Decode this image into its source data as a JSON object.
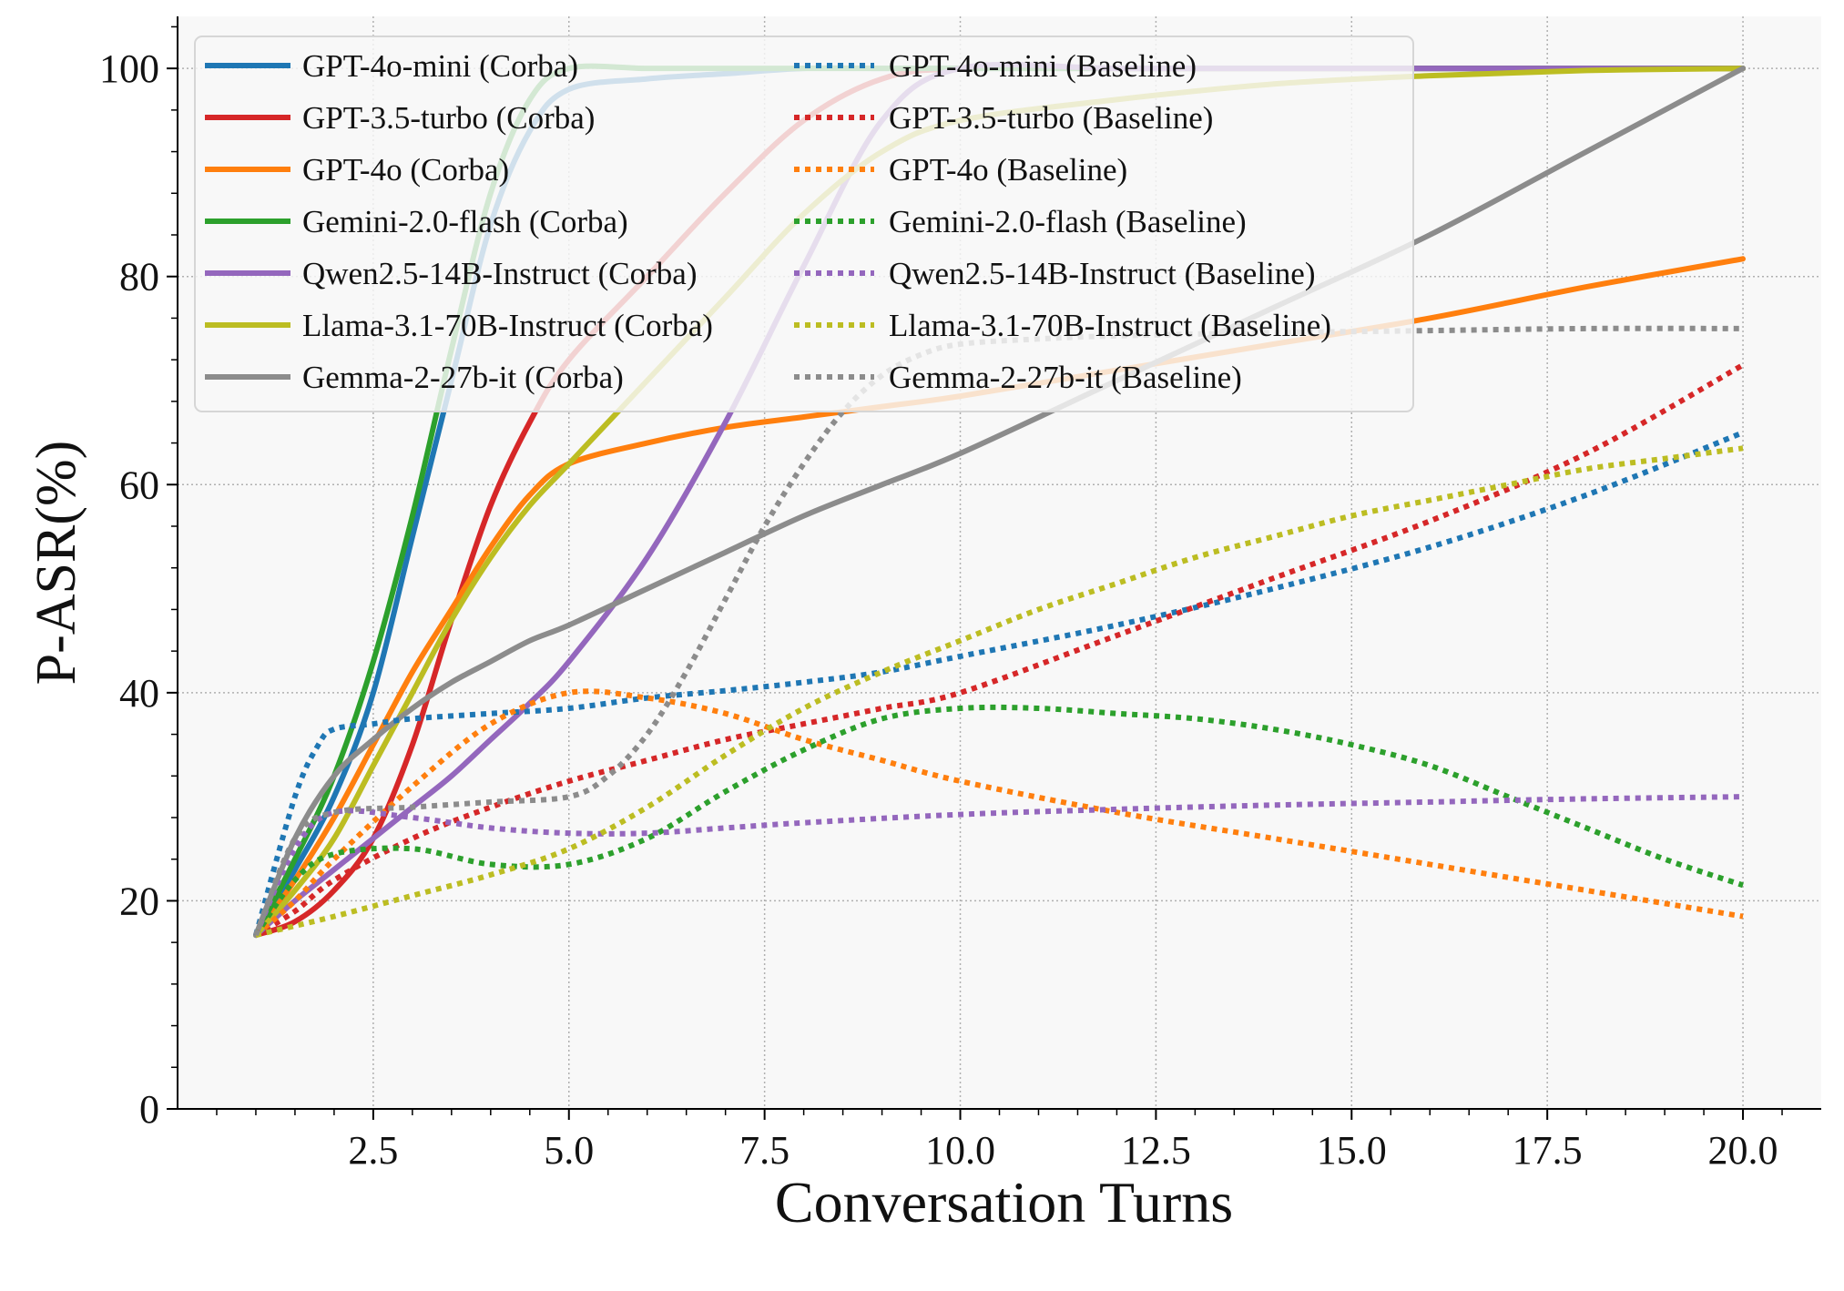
{
  "chart_data": {
    "type": "line",
    "title": "",
    "xlabel": "Conversation Turns",
    "ylabel": "P-ASR(%)",
    "xlim": [
      0.0,
      21.0
    ],
    "ylim": [
      0,
      105
    ],
    "xticks": [
      2.5,
      5.0,
      7.5,
      10.0,
      12.5,
      15.0,
      17.5,
      20.0
    ],
    "xtick_labels": [
      "2.5",
      "5.0",
      "7.5",
      "10.0",
      "12.5",
      "15.0",
      "17.5",
      "20.0"
    ],
    "yticks": [
      0,
      20,
      40,
      60,
      80,
      100
    ],
    "ytick_labels": [
      "0",
      "20",
      "40",
      "60",
      "80",
      "100"
    ],
    "grid": true,
    "legend_location": "top-left",
    "legend_columns": 2,
    "series": [
      {
        "name": "GPT-4o-mini (Corba)",
        "style": "solid",
        "color": "#1f77b4",
        "x": [
          1,
          1.5,
          2,
          2.5,
          3,
          3.5,
          4,
          4.5,
          5,
          6,
          7,
          8,
          9,
          10,
          12,
          14,
          16,
          18,
          20
        ],
        "y": [
          16.7,
          23,
          30,
          40,
          55,
          70,
          85,
          94,
          98,
          99,
          99.5,
          100,
          100,
          100,
          100,
          100,
          100,
          100,
          100
        ]
      },
      {
        "name": "GPT-3.5-turbo (Corba)",
        "style": "solid",
        "color": "#d62728",
        "x": [
          1,
          1.5,
          2,
          2.5,
          3,
          3.5,
          4,
          4.5,
          5,
          6,
          7,
          8,
          9,
          10,
          12,
          14,
          16,
          18,
          20
        ],
        "y": [
          16.7,
          18,
          21,
          26,
          35,
          47,
          58,
          66,
          72,
          80,
          88,
          95,
          99,
          100,
          100,
          100,
          100,
          100,
          100
        ]
      },
      {
        "name": "GPT-4o (Corba)",
        "style": "solid",
        "color": "#ff7f0e",
        "x": [
          1,
          1.5,
          2,
          2.5,
          3,
          3.5,
          4,
          4.5,
          5,
          6,
          7,
          8,
          9,
          10,
          12,
          14,
          16,
          18,
          20
        ],
        "y": [
          16.7,
          22,
          28,
          35,
          42,
          48,
          54,
          59,
          62,
          64,
          65.5,
          66.5,
          67.5,
          68.5,
          71,
          73.5,
          76,
          79,
          81.7
        ]
      },
      {
        "name": "Gemini-2.0-flash (Corba)",
        "style": "solid",
        "color": "#2ca02c",
        "x": [
          1,
          1.5,
          2,
          2.5,
          3,
          3.5,
          4,
          4.5,
          5,
          6,
          7,
          8,
          9,
          10,
          12,
          14,
          16,
          18,
          20
        ],
        "y": [
          16.7,
          24,
          32,
          43,
          57,
          73,
          88,
          97,
          100,
          100,
          100,
          100,
          100,
          100,
          100,
          100,
          100,
          100,
          100
        ]
      },
      {
        "name": "Qwen2.5-14B-Instruct (Corba)",
        "style": "solid",
        "color": "#9467bd",
        "x": [
          1,
          1.5,
          2,
          2.5,
          3,
          3.5,
          4,
          4.5,
          5,
          6,
          7,
          8,
          9,
          10,
          12,
          14,
          16,
          18,
          20
        ],
        "y": [
          16.7,
          20,
          23,
          26,
          29,
          32,
          35.5,
          39,
          43,
          53,
          66,
          81,
          95,
          100,
          100,
          100,
          100,
          100,
          100
        ]
      },
      {
        "name": "Llama-3.1-70B-Instruct (Corba)",
        "style": "solid",
        "color": "#bcbd22",
        "x": [
          1,
          1.5,
          2,
          2.5,
          3,
          3.5,
          4,
          4.5,
          5,
          6,
          7,
          8,
          9,
          10,
          12,
          14,
          16,
          18,
          20
        ],
        "y": [
          16.7,
          21,
          26,
          33,
          40,
          47,
          53,
          58,
          62,
          70,
          78,
          86,
          92,
          95,
          97,
          98.5,
          99.3,
          99.8,
          100
        ]
      },
      {
        "name": "Gemma-2-27b-it (Corba)",
        "style": "solid",
        "color": "#8c8c8c",
        "x": [
          1,
          1.5,
          2,
          2.5,
          3,
          3.5,
          4,
          4.5,
          5,
          6,
          7,
          8,
          9,
          10,
          12,
          14,
          16,
          18,
          20
        ],
        "y": [
          16.7,
          26,
          32,
          35.5,
          38.5,
          41,
          43,
          45,
          46.5,
          50,
          53.5,
          57,
          60,
          63,
          70,
          77,
          84,
          92,
          100
        ]
      },
      {
        "name": "GPT-4o-mini (Baseline)",
        "style": "dotted",
        "color": "#1f77b4",
        "x": [
          1,
          1.5,
          1.8,
          2,
          2.5,
          3,
          4,
          5,
          6,
          7,
          8,
          9,
          10,
          12,
          14,
          16,
          18,
          20
        ],
        "y": [
          16.7,
          30,
          35,
          36.5,
          37,
          37.5,
          38,
          38.5,
          39.5,
          40.2,
          41,
          42,
          43.5,
          46.5,
          50,
          54,
          59,
          65
        ]
      },
      {
        "name": "GPT-3.5-turbo (Baseline)",
        "style": "dotted",
        "color": "#d62728",
        "x": [
          1,
          1.5,
          2,
          3,
          4,
          5,
          6,
          7,
          8,
          9,
          10,
          12,
          14,
          16,
          18,
          20
        ],
        "y": [
          16.7,
          19,
          22,
          26,
          29,
          31.5,
          33.5,
          35.5,
          37,
          38.5,
          40,
          45.5,
          51,
          56.5,
          63,
          71.5
        ]
      },
      {
        "name": "GPT-4o (Baseline)",
        "style": "dotted",
        "color": "#ff7f0e",
        "x": [
          1,
          1.5,
          2,
          3,
          4,
          5,
          6,
          7,
          8,
          9,
          10,
          12,
          14,
          16,
          18,
          20
        ],
        "y": [
          16.7,
          20,
          24,
          31,
          37,
          40,
          39.5,
          38,
          35.5,
          33.5,
          31.5,
          28.5,
          26,
          23.5,
          21,
          18.5
        ]
      },
      {
        "name": "Gemini-2.0-flash (Baseline)",
        "style": "dotted",
        "color": "#2ca02c",
        "x": [
          1,
          1.5,
          2,
          3,
          4,
          5,
          6,
          7,
          8,
          9,
          10,
          11,
          12,
          13,
          14,
          15,
          16,
          17,
          18,
          19,
          20
        ],
        "y": [
          16.7,
          22,
          24.5,
          25,
          23.5,
          23.5,
          26,
          30.5,
          34.5,
          37.5,
          38.5,
          38.5,
          38,
          37.5,
          36.5,
          35,
          33,
          30,
          27,
          24,
          21.5
        ]
      },
      {
        "name": "Qwen2.5-14B-Instruct (Baseline)",
        "style": "dotted",
        "color": "#9467bd",
        "x": [
          1,
          1.5,
          2,
          3,
          4,
          5,
          6,
          7,
          8,
          10,
          12,
          14,
          16,
          18,
          20
        ],
        "y": [
          16.7,
          25,
          28.5,
          28,
          27,
          26.5,
          26.5,
          27,
          27.5,
          28.3,
          28.8,
          29.2,
          29.5,
          29.8,
          30
        ]
      },
      {
        "name": "Llama-3.1-70B-Instruct (Baseline)",
        "style": "dotted",
        "color": "#bcbd22",
        "x": [
          1,
          2,
          3,
          4,
          5,
          6,
          7,
          8,
          9,
          10,
          11,
          12,
          13,
          14,
          15,
          16,
          17,
          18,
          19,
          20
        ],
        "y": [
          16.7,
          18.5,
          20.5,
          22.5,
          25,
          29,
          34,
          38.5,
          42,
          45,
          48,
          50.5,
          53,
          55,
          57,
          58.5,
          60,
          61.5,
          62.5,
          63.5
        ]
      },
      {
        "name": "Gemma-2-27b-it (Baseline)",
        "style": "dotted",
        "color": "#8c8c8c",
        "x": [
          1,
          1.5,
          2,
          3,
          4,
          5,
          5.5,
          6,
          6.5,
          7,
          7.5,
          8,
          8.5,
          9,
          9.5,
          10,
          11,
          12,
          14,
          16,
          18,
          20
        ],
        "y": [
          16.7,
          26,
          28.5,
          29,
          29.5,
          30,
          32,
          36,
          42,
          49,
          56,
          62,
          67,
          70.5,
          72.5,
          73.5,
          74,
          74.3,
          74.6,
          74.8,
          75,
          75
        ]
      }
    ]
  }
}
